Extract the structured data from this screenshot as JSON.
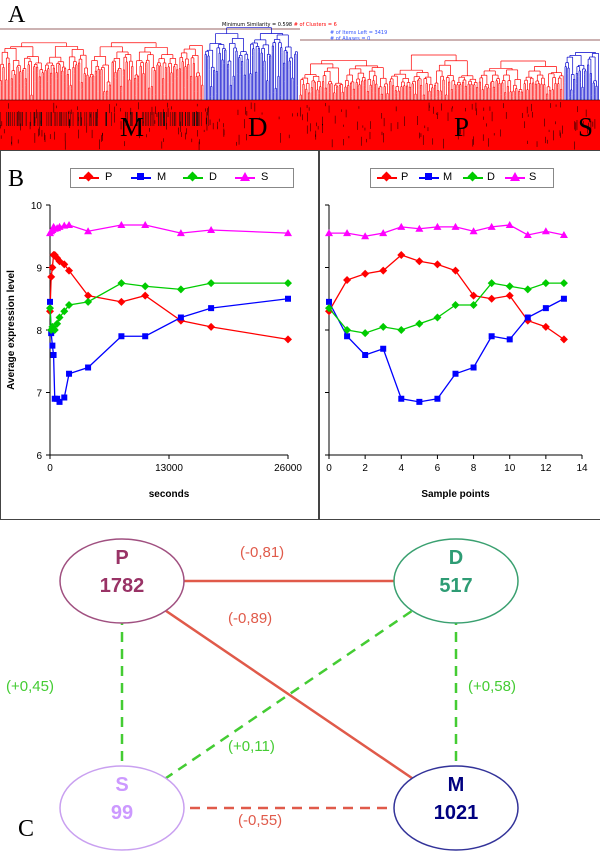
{
  "panels": {
    "a": "A",
    "b": "B",
    "c": "C"
  },
  "dendrogram": {
    "header_similarity": "Minimum Similarity = 0.598",
    "header_clusters": "# of Clusters = 6",
    "items_left": "# of Items Left = 3419",
    "aliases": "# of Aliases = 0",
    "cluster_labels": [
      "M",
      "D",
      "P",
      "S"
    ],
    "colors": {
      "red": "#ff0000",
      "blue": "#0000cc"
    }
  },
  "legend": {
    "series": [
      {
        "key": "P",
        "label": "P",
        "color": "#ff0000",
        "marker": "diamond"
      },
      {
        "key": "M",
        "label": "M",
        "color": "#0000ff",
        "marker": "square"
      },
      {
        "key": "D",
        "label": "D",
        "color": "#00cc00",
        "marker": "diamond"
      },
      {
        "key": "S",
        "label": "S",
        "color": "#ff00ff",
        "marker": "triangle"
      }
    ]
  },
  "chart_data": [
    {
      "type": "line",
      "xlabel": "seconds",
      "ylabel": "Average expression level",
      "xlim": [
        0,
        26000
      ],
      "ylim": [
        6,
        10
      ],
      "xticks": [
        "0",
        "13000",
        "26000"
      ],
      "yticks": [
        "6",
        "7",
        "8",
        "9",
        "10"
      ],
      "x": [
        0,
        130,
        260,
        390,
        520,
        780,
        1040,
        1560,
        2080,
        4160,
        7800,
        10400,
        14300,
        17600,
        26000
      ],
      "series": [
        {
          "name": "P",
          "values": [
            8.3,
            8.85,
            9.0,
            9.2,
            9.2,
            9.15,
            9.1,
            9.05,
            8.95,
            8.55,
            8.45,
            8.55,
            8.15,
            8.05,
            7.85
          ]
        },
        {
          "name": "M",
          "values": [
            8.45,
            7.95,
            7.75,
            7.6,
            6.9,
            6.9,
            6.85,
            6.92,
            7.3,
            7.4,
            7.9,
            7.9,
            8.2,
            8.35,
            8.5
          ]
        },
        {
          "name": "D",
          "values": [
            8.35,
            8.0,
            8.05,
            8.02,
            8.0,
            8.1,
            8.2,
            8.3,
            8.4,
            8.45,
            8.75,
            8.7,
            8.65,
            8.75,
            8.75
          ]
        },
        {
          "name": "S",
          "values": [
            9.55,
            9.58,
            9.6,
            9.65,
            9.62,
            9.63,
            9.65,
            9.67,
            9.68,
            9.58,
            9.68,
            9.68,
            9.55,
            9.6,
            9.55
          ]
        }
      ]
    },
    {
      "type": "line",
      "xlabel": "Sample points",
      "ylabel": "",
      "xlim": [
        0,
        14
      ],
      "ylim": [
        6,
        10
      ],
      "xticks": [
        "0",
        "2",
        "4",
        "6",
        "8",
        "10",
        "12",
        "14"
      ],
      "x": [
        0,
        1,
        2,
        3,
        4,
        5,
        6,
        7,
        8,
        9,
        10,
        11,
        12,
        13
      ],
      "series": [
        {
          "name": "P",
          "values": [
            8.3,
            8.8,
            8.9,
            8.95,
            9.2,
            9.1,
            9.05,
            8.95,
            8.55,
            8.5,
            8.55,
            8.15,
            8.05,
            7.85
          ]
        },
        {
          "name": "M",
          "values": [
            8.45,
            7.9,
            7.6,
            7.7,
            6.9,
            6.85,
            6.9,
            7.3,
            7.4,
            7.9,
            7.85,
            8.2,
            8.35,
            8.5
          ]
        },
        {
          "name": "D",
          "values": [
            8.35,
            8.0,
            7.95,
            8.05,
            8.0,
            8.1,
            8.2,
            8.4,
            8.4,
            8.75,
            8.7,
            8.65,
            8.75,
            8.75
          ]
        },
        {
          "name": "S",
          "values": [
            9.55,
            9.55,
            9.5,
            9.55,
            9.65,
            9.62,
            9.65,
            9.65,
            9.58,
            9.65,
            9.68,
            9.52,
            9.58,
            9.52
          ]
        }
      ]
    }
  ],
  "network": {
    "nodes": [
      {
        "key": "P",
        "label": "P",
        "count": "1782",
        "color": "#993366",
        "stroke": "#a05080"
      },
      {
        "key": "D",
        "label": "D",
        "count": "517",
        "color": "#2e9c74",
        "stroke": "#3aa070"
      },
      {
        "key": "S",
        "label": "S",
        "count": "99",
        "color": "#cc99ff",
        "stroke": "#c9a0f0"
      },
      {
        "key": "M",
        "label": "M",
        "count": "1021",
        "color": "#000080",
        "stroke": "#333399"
      }
    ],
    "edges": [
      {
        "from": "P",
        "to": "D",
        "label": "(-0,81)",
        "style": "solid",
        "color": "#e05a4a"
      },
      {
        "from": "P",
        "to": "M",
        "label": "(-0,89)",
        "style": "solid",
        "color": "#e05a4a"
      },
      {
        "from": "S",
        "to": "M",
        "label": "(-0,55)",
        "style": "dashed",
        "color": "#e05a4a"
      },
      {
        "from": "P",
        "to": "S",
        "label": "(+0,45)",
        "style": "dashed",
        "color": "#44cc33"
      },
      {
        "from": "D",
        "to": "M",
        "label": "(+0,58)",
        "style": "dashed",
        "color": "#44cc33"
      },
      {
        "from": "S",
        "to": "D",
        "label": "(+0,11)",
        "style": "dashed",
        "color": "#44cc33"
      }
    ]
  }
}
